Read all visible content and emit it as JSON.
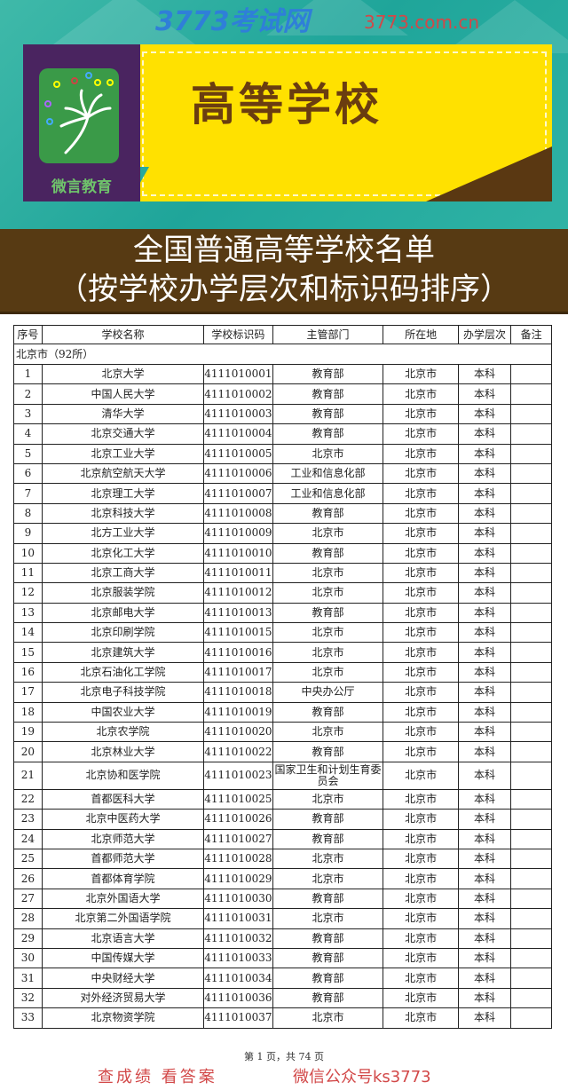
{
  "banner": {
    "title": "高等学校",
    "logo_text": "微言教育"
  },
  "heading": {
    "line1": "全国普通高等学校名单",
    "line2": "（按学校办学层次和标识码排序）"
  },
  "table": {
    "headers": [
      "序号",
      "学校名称",
      "学校标识码",
      "主管部门",
      "所在地",
      "办学层次",
      "备注"
    ],
    "group": "北京市（92所）",
    "rows": [
      [
        "1",
        "北京大学",
        "4111010001",
        "教育部",
        "北京市",
        "本科",
        ""
      ],
      [
        "2",
        "中国人民大学",
        "4111010002",
        "教育部",
        "北京市",
        "本科",
        ""
      ],
      [
        "3",
        "清华大学",
        "4111010003",
        "教育部",
        "北京市",
        "本科",
        ""
      ],
      [
        "4",
        "北京交通大学",
        "4111010004",
        "教育部",
        "北京市",
        "本科",
        ""
      ],
      [
        "5",
        "北京工业大学",
        "4111010005",
        "北京市",
        "北京市",
        "本科",
        ""
      ],
      [
        "6",
        "北京航空航天大学",
        "4111010006",
        "工业和信息化部",
        "北京市",
        "本科",
        ""
      ],
      [
        "7",
        "北京理工大学",
        "4111010007",
        "工业和信息化部",
        "北京市",
        "本科",
        ""
      ],
      [
        "8",
        "北京科技大学",
        "4111010008",
        "教育部",
        "北京市",
        "本科",
        ""
      ],
      [
        "9",
        "北方工业大学",
        "4111010009",
        "北京市",
        "北京市",
        "本科",
        ""
      ],
      [
        "10",
        "北京化工大学",
        "4111010010",
        "教育部",
        "北京市",
        "本科",
        ""
      ],
      [
        "11",
        "北京工商大学",
        "4111010011",
        "北京市",
        "北京市",
        "本科",
        ""
      ],
      [
        "12",
        "北京服装学院",
        "4111010012",
        "北京市",
        "北京市",
        "本科",
        ""
      ],
      [
        "13",
        "北京邮电大学",
        "4111010013",
        "教育部",
        "北京市",
        "本科",
        ""
      ],
      [
        "14",
        "北京印刷学院",
        "4111010015",
        "北京市",
        "北京市",
        "本科",
        ""
      ],
      [
        "15",
        "北京建筑大学",
        "4111010016",
        "北京市",
        "北京市",
        "本科",
        ""
      ],
      [
        "16",
        "北京石油化工学院",
        "4111010017",
        "北京市",
        "北京市",
        "本科",
        ""
      ],
      [
        "17",
        "北京电子科技学院",
        "4111010018",
        "中央办公厅",
        "北京市",
        "本科",
        ""
      ],
      [
        "18",
        "中国农业大学",
        "4111010019",
        "教育部",
        "北京市",
        "本科",
        ""
      ],
      [
        "19",
        "北京农学院",
        "4111010020",
        "北京市",
        "北京市",
        "本科",
        ""
      ],
      [
        "20",
        "北京林业大学",
        "4111010022",
        "教育部",
        "北京市",
        "本科",
        ""
      ],
      [
        "21",
        "北京协和医学院",
        "4111010023",
        "国家卫生和计划生育委员会",
        "北京市",
        "本科",
        ""
      ],
      [
        "22",
        "首都医科大学",
        "4111010025",
        "北京市",
        "北京市",
        "本科",
        ""
      ],
      [
        "23",
        "北京中医药大学",
        "4111010026",
        "教育部",
        "北京市",
        "本科",
        ""
      ],
      [
        "24",
        "北京师范大学",
        "4111010027",
        "教育部",
        "北京市",
        "本科",
        ""
      ],
      [
        "25",
        "首都师范大学",
        "4111010028",
        "北京市",
        "北京市",
        "本科",
        ""
      ],
      [
        "26",
        "首都体育学院",
        "4111010029",
        "北京市",
        "北京市",
        "本科",
        ""
      ],
      [
        "27",
        "北京外国语大学",
        "4111010030",
        "教育部",
        "北京市",
        "本科",
        ""
      ],
      [
        "28",
        "北京第二外国语学院",
        "4111010031",
        "北京市",
        "北京市",
        "本科",
        ""
      ],
      [
        "29",
        "北京语言大学",
        "4111010032",
        "教育部",
        "北京市",
        "本科",
        ""
      ],
      [
        "30",
        "中国传媒大学",
        "4111010033",
        "教育部",
        "北京市",
        "本科",
        ""
      ],
      [
        "31",
        "中央财经大学",
        "4111010034",
        "教育部",
        "北京市",
        "本科",
        ""
      ],
      [
        "32",
        "对外经济贸易大学",
        "4111010036",
        "教育部",
        "北京市",
        "本科",
        ""
      ],
      [
        "33",
        "北京物资学院",
        "4111010037",
        "北京市",
        "北京市",
        "本科",
        ""
      ]
    ]
  },
  "footer": "第 1 页，共 74 页",
  "watermark": {
    "brand": "3773考试网",
    "url": "3773.com.cn",
    "slogan": "查成绩 看答案",
    "wechat": "微信公众号ks3773"
  },
  "colors": {
    "teal": "#1fa59a",
    "yellow": "#ffe100",
    "brown": "#573a13",
    "purple": "#4a2460"
  }
}
